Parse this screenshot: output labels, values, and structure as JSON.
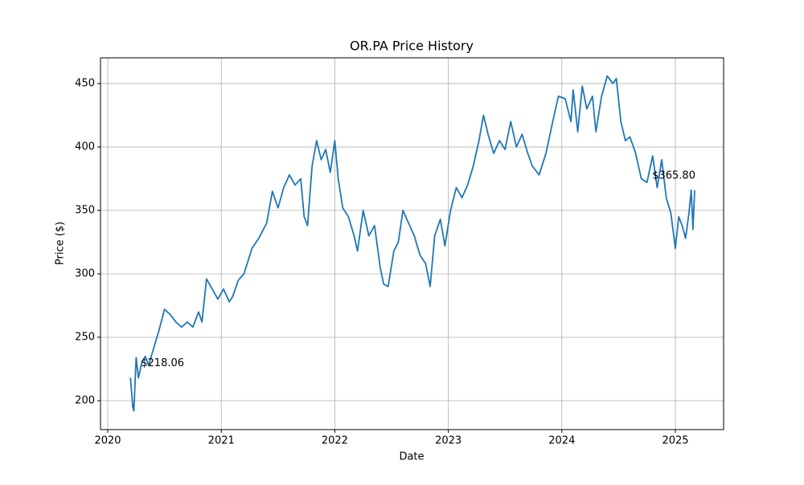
{
  "chart_data": {
    "type": "line",
    "title": "OR.PA Price History",
    "x_label": "Date",
    "y_label": "Price ($)",
    "x": [
      2020.2,
      2020.22,
      2020.23,
      2020.25,
      2020.27,
      2020.3,
      2020.33,
      2020.36,
      2020.4,
      2020.45,
      2020.5,
      2020.55,
      2020.6,
      2020.65,
      2020.7,
      2020.75,
      2020.8,
      2020.83,
      2020.87,
      2020.92,
      2020.97,
      2021.02,
      2021.07,
      2021.1,
      2021.15,
      2021.2,
      2021.27,
      2021.33,
      2021.4,
      2021.45,
      2021.5,
      2021.55,
      2021.6,
      2021.65,
      2021.7,
      2021.73,
      2021.76,
      2021.8,
      2021.84,
      2021.88,
      2021.92,
      2021.96,
      2022.0,
      2022.03,
      2022.07,
      2022.12,
      2022.17,
      2022.2,
      2022.25,
      2022.3,
      2022.35,
      2022.4,
      2022.43,
      2022.47,
      2022.52,
      2022.56,
      2022.6,
      2022.65,
      2022.7,
      2022.75,
      2022.8,
      2022.84,
      2022.88,
      2022.93,
      2022.97,
      2023.02,
      2023.07,
      2023.12,
      2023.17,
      2023.22,
      2023.27,
      2023.31,
      2023.35,
      2023.4,
      2023.45,
      2023.5,
      2023.55,
      2023.6,
      2023.65,
      2023.7,
      2023.74,
      2023.8,
      2023.86,
      2023.92,
      2023.97,
      2024.03,
      2024.08,
      2024.1,
      2024.14,
      2024.18,
      2024.22,
      2024.27,
      2024.3,
      2024.35,
      2024.4,
      2024.45,
      2024.48,
      2024.52,
      2024.56,
      2024.6,
      2024.65,
      2024.7,
      2024.75,
      2024.8,
      2024.84,
      2024.88,
      2024.92,
      2024.96,
      2025.0,
      2025.03,
      2025.06,
      2025.09,
      2025.12,
      2025.14,
      2025.155,
      2025.17
    ],
    "series": [
      {
        "color": "#1f77b4",
        "values": [
          218.06,
          195,
          192,
          234,
          218,
          230,
          235,
          228,
          240,
          255,
          272,
          268,
          262,
          258,
          262,
          258,
          270,
          262,
          296,
          288,
          280,
          288,
          278,
          282,
          295,
          300,
          320,
          328,
          340,
          365,
          352,
          368,
          378,
          370,
          375,
          345,
          338,
          385,
          405,
          390,
          398,
          380,
          405,
          375,
          352,
          345,
          330,
          318,
          350,
          330,
          338,
          305,
          292,
          290,
          318,
          325,
          350,
          340,
          330,
          315,
          308,
          290,
          330,
          343,
          322,
          350,
          368,
          360,
          370,
          385,
          405,
          425,
          410,
          395,
          405,
          398,
          420,
          400,
          410,
          395,
          385,
          378,
          395,
          420,
          440,
          438,
          420,
          445,
          412,
          448,
          430,
          440,
          412,
          440,
          456,
          450,
          454,
          420,
          405,
          408,
          395,
          375,
          372,
          393,
          368,
          390,
          360,
          348,
          320,
          345,
          338,
          328,
          348,
          366,
          335,
          365.8
        ]
      }
    ],
    "annotations": [
      {
        "text": "$218.06",
        "x": 2020.2,
        "y": 218.06
      },
      {
        "text": "$365.80",
        "x": 2025.17,
        "y": 365.8
      }
    ],
    "xlim": [
      2019.936,
      2025.425
    ],
    "xticks": [
      2020,
      2021,
      2022,
      2023,
      2024,
      2025
    ],
    "ylim": [
      177.2,
      470.3
    ],
    "yticks": [
      200,
      250,
      300,
      350,
      400,
      450
    ],
    "grid": true
  }
}
